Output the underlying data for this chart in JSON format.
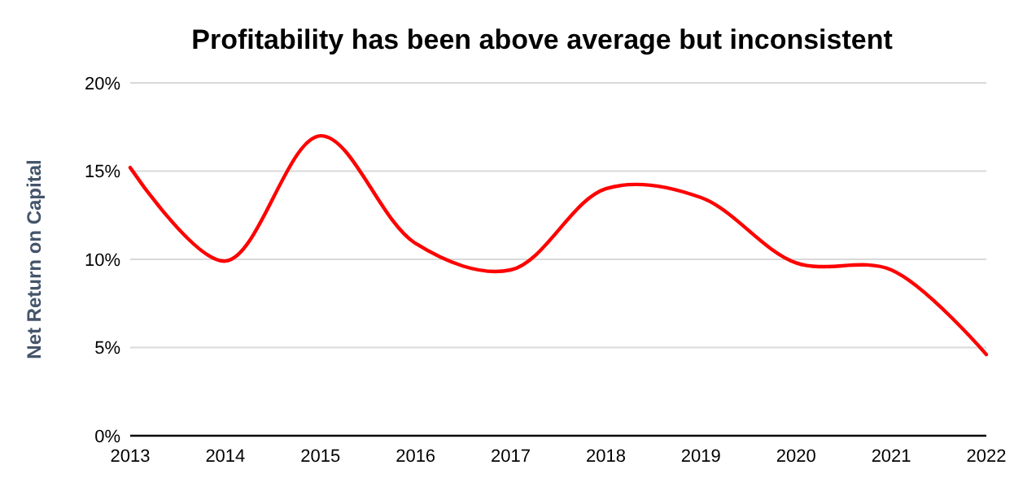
{
  "chart_data": {
    "type": "line",
    "title": "Profitability has been above average but inconsistent",
    "ylabel": "Net Return on Capital",
    "categories": [
      "2013",
      "2014",
      "2015",
      "2016",
      "2017",
      "2018",
      "2019",
      "2020",
      "2021",
      "2022"
    ],
    "series": [
      {
        "color": "#ff0000",
        "values": [
          15.2,
          9.9,
          17.0,
          10.9,
          9.4,
          14.0,
          13.5,
          9.8,
          9.4,
          4.6
        ]
      }
    ],
    "ylim": [
      0,
      20
    ],
    "yticks": [
      {
        "value": 0,
        "label": "0%"
      },
      {
        "value": 5,
        "label": "5%"
      },
      {
        "value": 10,
        "label": "10%"
      },
      {
        "value": 15,
        "label": "15%"
      },
      {
        "value": 20,
        "label": "20%"
      }
    ],
    "grid": "y",
    "marker": "none",
    "line_style": "solid"
  }
}
